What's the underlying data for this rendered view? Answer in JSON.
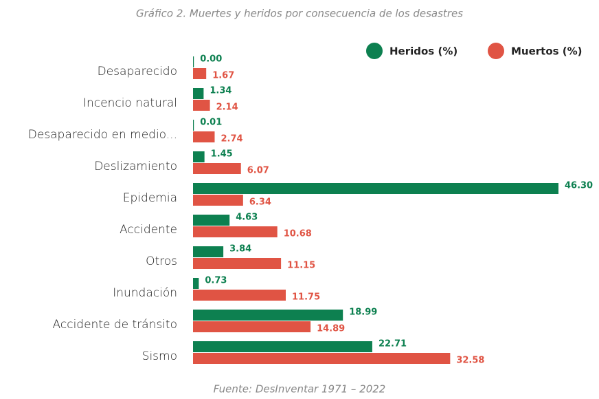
{
  "chart_data": {
    "type": "bar",
    "orientation": "horizontal",
    "title": "Gráfico 2. Muertes y heridos por consecuencia de los desastres",
    "source": "Fuente: DesInventar 1971 – 2022",
    "categories": [
      "Desaparecido",
      "Incencio natural",
      "Desaparecido en medio...",
      "Deslizamiento",
      "Epidemia",
      "Accidente",
      "Otros",
      "Inundación",
      "Accidente de tránsito",
      "Sismo"
    ],
    "series": [
      {
        "name": "Heridos (%)",
        "color": "#0d8050",
        "values": [
          0,
          1.34,
          0.01,
          1.45,
          46.3,
          4.63,
          3.84,
          0.73,
          18.99,
          22.71
        ],
        "value_labels": [
          "0.00",
          "1.34",
          "0.01",
          "1.45",
          "46.30",
          "4.63",
          "3.84",
          "0.73",
          "18.99",
          "22.71"
        ]
      },
      {
        "name": "Muertos (%)",
        "color": "#e05444",
        "values": [
          1.67,
          2.14,
          2.74,
          6.07,
          6.34,
          10.68,
          11.15,
          11.75,
          14.89,
          32.58
        ],
        "value_labels": [
          "1.67",
          "2.14",
          "2.74",
          "6.07",
          "6.34",
          "10.68",
          "11.15",
          "11.75",
          "14.89",
          "32.58"
        ]
      }
    ]
  }
}
